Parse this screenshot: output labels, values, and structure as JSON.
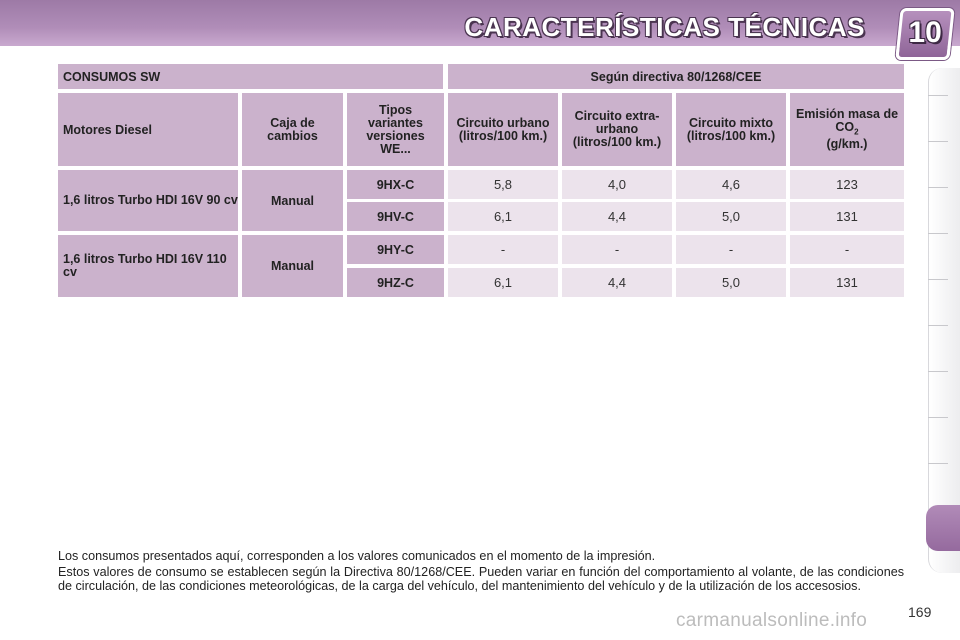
{
  "header": {
    "title": "CARACTERÍSTICAS TÉCNICAS",
    "chapter": "10"
  },
  "table": {
    "title": "CONSUMOS SW",
    "directive": "Según directiva 80/1268/CEE",
    "columns": {
      "engine": "Motores Diesel",
      "gearbox": "Caja de cambios",
      "variants": "Tipos variantes versiones WE...",
      "urban": "Circuito urbano (litros/100 km.)",
      "extra_urban": "Circuito extra-urbano (litros/100 km.)",
      "mixed": "Circuito mixto (litros/100 km.)",
      "emission": "Emisión masa de CO",
      "emission_sub": "2",
      "emission_unit": "(g/km.)"
    },
    "groups": [
      {
        "engine": "1,6 litros Turbo HDI 16V 90 cv",
        "gearbox": "Manual",
        "rows": [
          {
            "code": "9HX-C",
            "urban": "5,8",
            "extra_urban": "4,0",
            "mixed": "4,6",
            "emission": "123"
          },
          {
            "code": "9HV-C",
            "urban": "6,1",
            "extra_urban": "4,4",
            "mixed": "5,0",
            "emission": "131"
          }
        ]
      },
      {
        "engine": "1,6 litros Turbo HDI 16V 110 cv",
        "gearbox": "Manual",
        "rows": [
          {
            "code": "9HY-C",
            "urban": "-",
            "extra_urban": "-",
            "mixed": "-",
            "emission": "-"
          },
          {
            "code": "9HZ-C",
            "urban": "6,1",
            "extra_urban": "4,4",
            "mixed": "5,0",
            "emission": "131"
          }
        ]
      }
    ]
  },
  "notes": [
    "Los consumos presentados aquí, corresponden a los valores comunicados en el momento de la impresión.",
    "Estos valores de consumo se establecen según la Directiva 80/1268/CEE. Pueden variar en función del comportamiento al volante, de las condiciones de circulación, de las condiciones meteorológicas, de la carga del vehículo, del mantenimiento del vehículo y de la utilización de los accesosios."
  ],
  "page_number": "169",
  "watermark": "carmanualsonline.info"
}
